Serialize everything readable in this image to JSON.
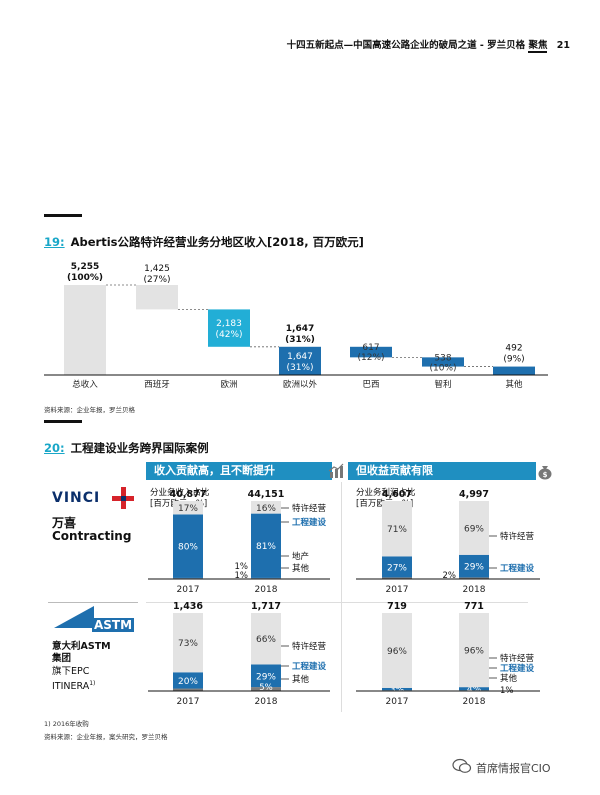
{
  "header": {
    "title": "十四五新起点—中国高速公路企业的破局之道 - 罗兰贝格",
    "focus": "聚焦",
    "page": "21"
  },
  "section19": {
    "number": "19:",
    "title": "Abertis公路特许经营业务分地区收入[2018, 百万欧元]",
    "source": "资料来源：企业年报，罗兰贝格"
  },
  "chart_data": [
    {
      "type": "bar",
      "variant": "waterfall",
      "title": "Abertis公路特许经营业务分地区收入[2018, 百万欧元]",
      "categories": [
        "总收入",
        "西班牙",
        "欧洲",
        "欧洲以外",
        "巴西",
        "智利",
        "其他"
      ],
      "values": [
        5255,
        1425,
        2183,
        1647,
        617,
        538,
        492
      ],
      "value_labels": [
        "5,255",
        "1,425",
        "2,183",
        "1,647",
        "617",
        "538",
        "492"
      ],
      "pct_labels": [
        "(100%)",
        "(27%)",
        "(42%)",
        "(31%)",
        "(12%)",
        "(10%)",
        "(9%)"
      ],
      "extra_label": {
        "category": "欧洲以外",
        "value": "1,647",
        "pct": "(31%)"
      },
      "colors": [
        "#e3e3e3",
        "#e3e3e3",
        "#22aed6",
        "#1e6fae",
        "#1e6fae",
        "#1e6fae",
        "#1e6fae"
      ],
      "ylim": [
        0,
        5255
      ]
    },
    {
      "type": "bar",
      "variant": "stacked-100",
      "title": "万喜 Contracting 分业务收入占比",
      "categories": [
        "2017",
        "2018"
      ],
      "totals": [
        "40,877",
        "44,151"
      ],
      "series": [
        {
          "name": "其他",
          "values": [
            1,
            1
          ]
        },
        {
          "name": "地产",
          "values": [
            1,
            1
          ]
        },
        {
          "name": "工程建设",
          "values": [
            80,
            81
          ]
        },
        {
          "name": "特许经营",
          "values": [
            17,
            16
          ]
        }
      ],
      "labels": {
        "特许经营": [
          "17%",
          "16%"
        ],
        "工程建设": [
          "80%",
          "81%"
        ],
        "地产": [
          "",
          "1%"
        ],
        "其他": [
          "",
          "1%"
        ]
      }
    },
    {
      "type": "bar",
      "variant": "stacked-100",
      "title": "万喜 Contracting 分业务利润占比",
      "categories": [
        "2017",
        "2018"
      ],
      "totals": [
        "4,607",
        "4,997"
      ],
      "series": [
        {
          "name": "其他",
          "values": [
            2,
            2
          ]
        },
        {
          "name": "工程建设",
          "values": [
            27,
            29
          ]
        },
        {
          "name": "特许经营",
          "values": [
            71,
            69
          ]
        }
      ],
      "labels": {
        "特许经营": [
          "71%",
          "69%"
        ],
        "工程建设": [
          "27%",
          "29%"
        ],
        "其他": [
          "",
          "2%"
        ]
      }
    },
    {
      "type": "bar",
      "variant": "stacked-100",
      "title": "意大利ASTM集团 分业务收入占比",
      "categories": [
        "2017",
        "2018"
      ],
      "totals": [
        "1,436",
        "1,717"
      ],
      "series": [
        {
          "name": "其他",
          "values": [
            3,
            5
          ]
        },
        {
          "name": "工程建设",
          "values": [
            20,
            29
          ]
        },
        {
          "name": "特许经营",
          "values": [
            73,
            66
          ]
        }
      ],
      "labels": {
        "特许经营": [
          "73%",
          "66%"
        ],
        "工程建设": [
          "20%",
          "29%"
        ],
        "其他": [
          "",
          "5%"
        ]
      }
    },
    {
      "type": "bar",
      "variant": "stacked-100",
      "title": "意大利ASTM集团 分业务利润占比",
      "categories": [
        "2017",
        "2018"
      ],
      "totals": [
        "719",
        "771"
      ],
      "series": [
        {
          "name": "其他",
          "values": [
            1,
            1
          ]
        },
        {
          "name": "工程建设",
          "values": [
            3,
            4
          ]
        },
        {
          "name": "特许经营",
          "values": [
            96,
            96
          ]
        }
      ],
      "labels": {
        "特许经营": [
          "96%",
          "96%"
        ],
        "工程建设": [
          "3%",
          "4%"
        ],
        "其他": [
          "",
          "1%"
        ]
      }
    }
  ],
  "section20": {
    "number": "20:",
    "title": "工程建设业务跨界国际案例",
    "panel_left": "收入贡献高，且不断提升",
    "panel_right": "但收益贡献有限",
    "left_sub_line1": "分业务收入占比",
    "left_sub_line2": "[百万欧元，%]",
    "right_sub_line1": "分业务利润占比",
    "right_sub_line2": "[百万欧元，%]",
    "legend": {
      "concession": "特许经营",
      "engineering": "工程建设",
      "realestate": "地产",
      "other": "其他"
    },
    "company1": {
      "logo": "VINCI",
      "name": "万喜",
      "sub": "Contracting"
    },
    "company2": {
      "logo": "ASTM",
      "name_line1": "意大利ASTM",
      "name_line2": "集团",
      "sub_line1": "旗下EPC",
      "sub_line2": "ITINERA",
      "sub_note": "1)"
    },
    "footnote": "1) 2016年收购",
    "source": "资料来源：企业年报，案头研究，罗兰贝格"
  },
  "watermark": "首席情报官CIO"
}
